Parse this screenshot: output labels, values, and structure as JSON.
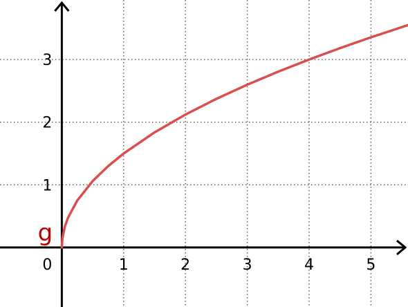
{
  "chart_data": {
    "type": "line",
    "title": "",
    "xlabel": "",
    "ylabel": "",
    "xlim": [
      -1.0,
      5.6
    ],
    "ylim": [
      -0.95,
      3.95
    ],
    "grid": true,
    "x_ticks": [
      1,
      2,
      3,
      4,
      5
    ],
    "y_ticks": [
      1,
      2,
      3
    ],
    "x_tick_labels": [
      "1",
      "2",
      "3",
      "4",
      "5"
    ],
    "y_tick_labels": [
      "1",
      "2",
      "3"
    ],
    "origin_label": "0",
    "series": [
      {
        "name": "g",
        "color": "#d94f4f",
        "label_color": "#c00000",
        "x": [
          0,
          0.01,
          0.05,
          0.1,
          0.25,
          0.5,
          0.75,
          1,
          1.5,
          2,
          2.5,
          3,
          3.5,
          4,
          4.5,
          5,
          5.6
        ],
        "y": [
          0,
          0.15,
          0.335,
          0.474,
          0.75,
          1.061,
          1.299,
          1.5,
          1.837,
          2.121,
          2.372,
          2.598,
          2.806,
          3.0,
          3.182,
          3.354,
          3.55
        ]
      }
    ]
  }
}
